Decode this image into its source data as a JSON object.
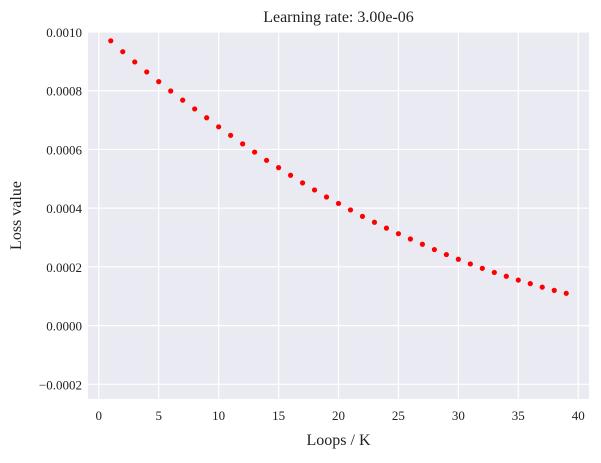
{
  "chart_data": {
    "type": "scatter",
    "title": "Learning rate: 3.00e-06",
    "xlabel": "Loops / K",
    "ylabel": "Loss value",
    "xlim": [
      -0.9,
      40.9
    ],
    "ylim": [
      -0.00025,
      0.001
    ],
    "xticks": [
      0,
      5,
      10,
      15,
      20,
      25,
      30,
      35,
      40
    ],
    "xtick_labels": [
      "0",
      "5",
      "10",
      "15",
      "20",
      "25",
      "30",
      "35",
      "40"
    ],
    "yticks": [
      -0.0002,
      0.0,
      0.0002,
      0.0004,
      0.0006,
      0.0008,
      0.001
    ],
    "ytick_labels": [
      "−0.0002",
      "0.0000",
      "0.0002",
      "0.0004",
      "0.0006",
      "0.0008",
      "0.0010"
    ],
    "grid": true,
    "colors": {
      "background": "#eaeaf2",
      "grid": "#ffffff",
      "marker": "#ff0000"
    },
    "series": [
      {
        "x": [
          1,
          2,
          3,
          4,
          5,
          6,
          7,
          8,
          9,
          10,
          11,
          12,
          13,
          14,
          15,
          16,
          17,
          18,
          19,
          20,
          21,
          22,
          23,
          24,
          25,
          26,
          27,
          28,
          29,
          30,
          31,
          32,
          33,
          34,
          35,
          36,
          37,
          38,
          39
        ],
        "y": [
          0.00097,
          0.000933,
          0.000898,
          0.000864,
          0.000831,
          0.000799,
          0.000768,
          0.000738,
          0.000708,
          0.000677,
          0.000648,
          0.000619,
          0.000591,
          0.000563,
          0.000538,
          0.000512,
          0.000486,
          0.000462,
          0.000438,
          0.000416,
          0.000394,
          0.000372,
          0.000352,
          0.000332,
          0.000313,
          0.000295,
          0.000277,
          0.000259,
          0.000242,
          0.000226,
          0.00021,
          0.000195,
          0.000181,
          0.000168,
          0.000155,
          0.000143,
          0.000131,
          0.00012,
          0.00011
        ]
      }
    ]
  }
}
